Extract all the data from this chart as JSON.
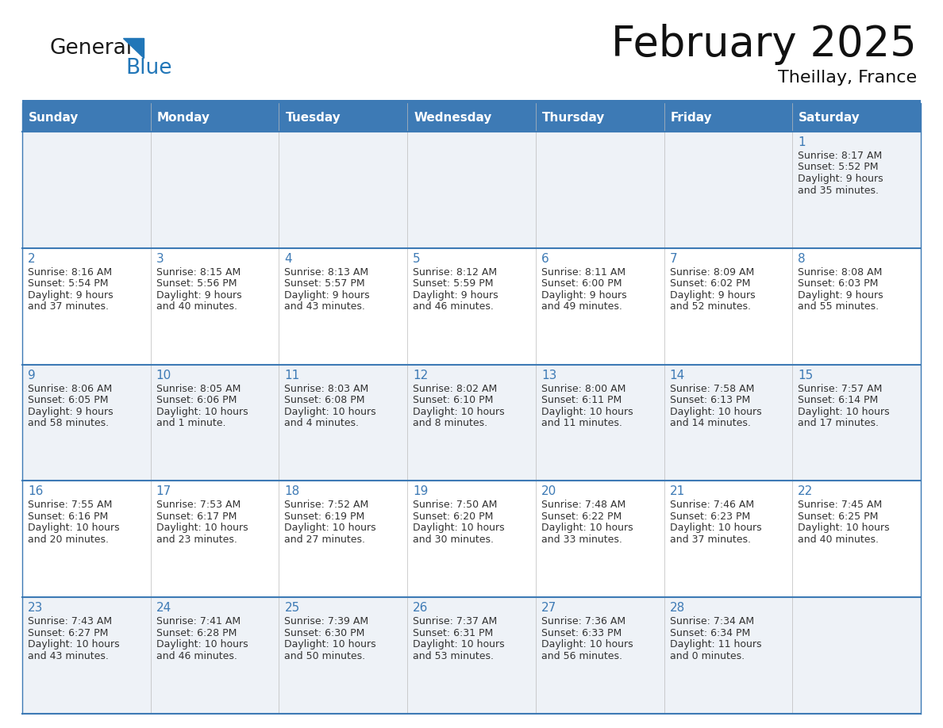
{
  "title": "February 2025",
  "subtitle": "Theillay, France",
  "days_of_week": [
    "Sunday",
    "Monday",
    "Tuesday",
    "Wednesday",
    "Thursday",
    "Friday",
    "Saturday"
  ],
  "header_bg": "#3d7ab5",
  "header_text": "#ffffff",
  "row_bg_odd": "#eef2f7",
  "row_bg_even": "#ffffff",
  "border_color": "#3d7ab5",
  "day_number_color": "#3d7ab5",
  "text_color": "#333333",
  "logo_black": "#1a1a1a",
  "logo_blue": "#2176b8",
  "calendar_data": [
    [
      null,
      null,
      null,
      null,
      null,
      null,
      {
        "day": 1,
        "sunrise": "8:17 AM",
        "sunset": "5:52 PM",
        "daylight": "9 hours",
        "daylight2": "and 35 minutes."
      }
    ],
    [
      {
        "day": 2,
        "sunrise": "8:16 AM",
        "sunset": "5:54 PM",
        "daylight": "9 hours",
        "daylight2": "and 37 minutes."
      },
      {
        "day": 3,
        "sunrise": "8:15 AM",
        "sunset": "5:56 PM",
        "daylight": "9 hours",
        "daylight2": "and 40 minutes."
      },
      {
        "day": 4,
        "sunrise": "8:13 AM",
        "sunset": "5:57 PM",
        "daylight": "9 hours",
        "daylight2": "and 43 minutes."
      },
      {
        "day": 5,
        "sunrise": "8:12 AM",
        "sunset": "5:59 PM",
        "daylight": "9 hours",
        "daylight2": "and 46 minutes."
      },
      {
        "day": 6,
        "sunrise": "8:11 AM",
        "sunset": "6:00 PM",
        "daylight": "9 hours",
        "daylight2": "and 49 minutes."
      },
      {
        "day": 7,
        "sunrise": "8:09 AM",
        "sunset": "6:02 PM",
        "daylight": "9 hours",
        "daylight2": "and 52 minutes."
      },
      {
        "day": 8,
        "sunrise": "8:08 AM",
        "sunset": "6:03 PM",
        "daylight": "9 hours",
        "daylight2": "and 55 minutes."
      }
    ],
    [
      {
        "day": 9,
        "sunrise": "8:06 AM",
        "sunset": "6:05 PM",
        "daylight": "9 hours",
        "daylight2": "and 58 minutes."
      },
      {
        "day": 10,
        "sunrise": "8:05 AM",
        "sunset": "6:06 PM",
        "daylight": "10 hours",
        "daylight2": "and 1 minute."
      },
      {
        "day": 11,
        "sunrise": "8:03 AM",
        "sunset": "6:08 PM",
        "daylight": "10 hours",
        "daylight2": "and 4 minutes."
      },
      {
        "day": 12,
        "sunrise": "8:02 AM",
        "sunset": "6:10 PM",
        "daylight": "10 hours",
        "daylight2": "and 8 minutes."
      },
      {
        "day": 13,
        "sunrise": "8:00 AM",
        "sunset": "6:11 PM",
        "daylight": "10 hours",
        "daylight2": "and 11 minutes."
      },
      {
        "day": 14,
        "sunrise": "7:58 AM",
        "sunset": "6:13 PM",
        "daylight": "10 hours",
        "daylight2": "and 14 minutes."
      },
      {
        "day": 15,
        "sunrise": "7:57 AM",
        "sunset": "6:14 PM",
        "daylight": "10 hours",
        "daylight2": "and 17 minutes."
      }
    ],
    [
      {
        "day": 16,
        "sunrise": "7:55 AM",
        "sunset": "6:16 PM",
        "daylight": "10 hours",
        "daylight2": "and 20 minutes."
      },
      {
        "day": 17,
        "sunrise": "7:53 AM",
        "sunset": "6:17 PM",
        "daylight": "10 hours",
        "daylight2": "and 23 minutes."
      },
      {
        "day": 18,
        "sunrise": "7:52 AM",
        "sunset": "6:19 PM",
        "daylight": "10 hours",
        "daylight2": "and 27 minutes."
      },
      {
        "day": 19,
        "sunrise": "7:50 AM",
        "sunset": "6:20 PM",
        "daylight": "10 hours",
        "daylight2": "and 30 minutes."
      },
      {
        "day": 20,
        "sunrise": "7:48 AM",
        "sunset": "6:22 PM",
        "daylight": "10 hours",
        "daylight2": "and 33 minutes."
      },
      {
        "day": 21,
        "sunrise": "7:46 AM",
        "sunset": "6:23 PM",
        "daylight": "10 hours",
        "daylight2": "and 37 minutes."
      },
      {
        "day": 22,
        "sunrise": "7:45 AM",
        "sunset": "6:25 PM",
        "daylight": "10 hours",
        "daylight2": "and 40 minutes."
      }
    ],
    [
      {
        "day": 23,
        "sunrise": "7:43 AM",
        "sunset": "6:27 PM",
        "daylight": "10 hours",
        "daylight2": "and 43 minutes."
      },
      {
        "day": 24,
        "sunrise": "7:41 AM",
        "sunset": "6:28 PM",
        "daylight": "10 hours",
        "daylight2": "and 46 minutes."
      },
      {
        "day": 25,
        "sunrise": "7:39 AM",
        "sunset": "6:30 PM",
        "daylight": "10 hours",
        "daylight2": "and 50 minutes."
      },
      {
        "day": 26,
        "sunrise": "7:37 AM",
        "sunset": "6:31 PM",
        "daylight": "10 hours",
        "daylight2": "and 53 minutes."
      },
      {
        "day": 27,
        "sunrise": "7:36 AM",
        "sunset": "6:33 PM",
        "daylight": "10 hours",
        "daylight2": "and 56 minutes."
      },
      {
        "day": 28,
        "sunrise": "7:34 AM",
        "sunset": "6:34 PM",
        "daylight": "11 hours",
        "daylight2": "and 0 minutes."
      },
      null
    ]
  ],
  "num_rows": 5,
  "num_cols": 7
}
